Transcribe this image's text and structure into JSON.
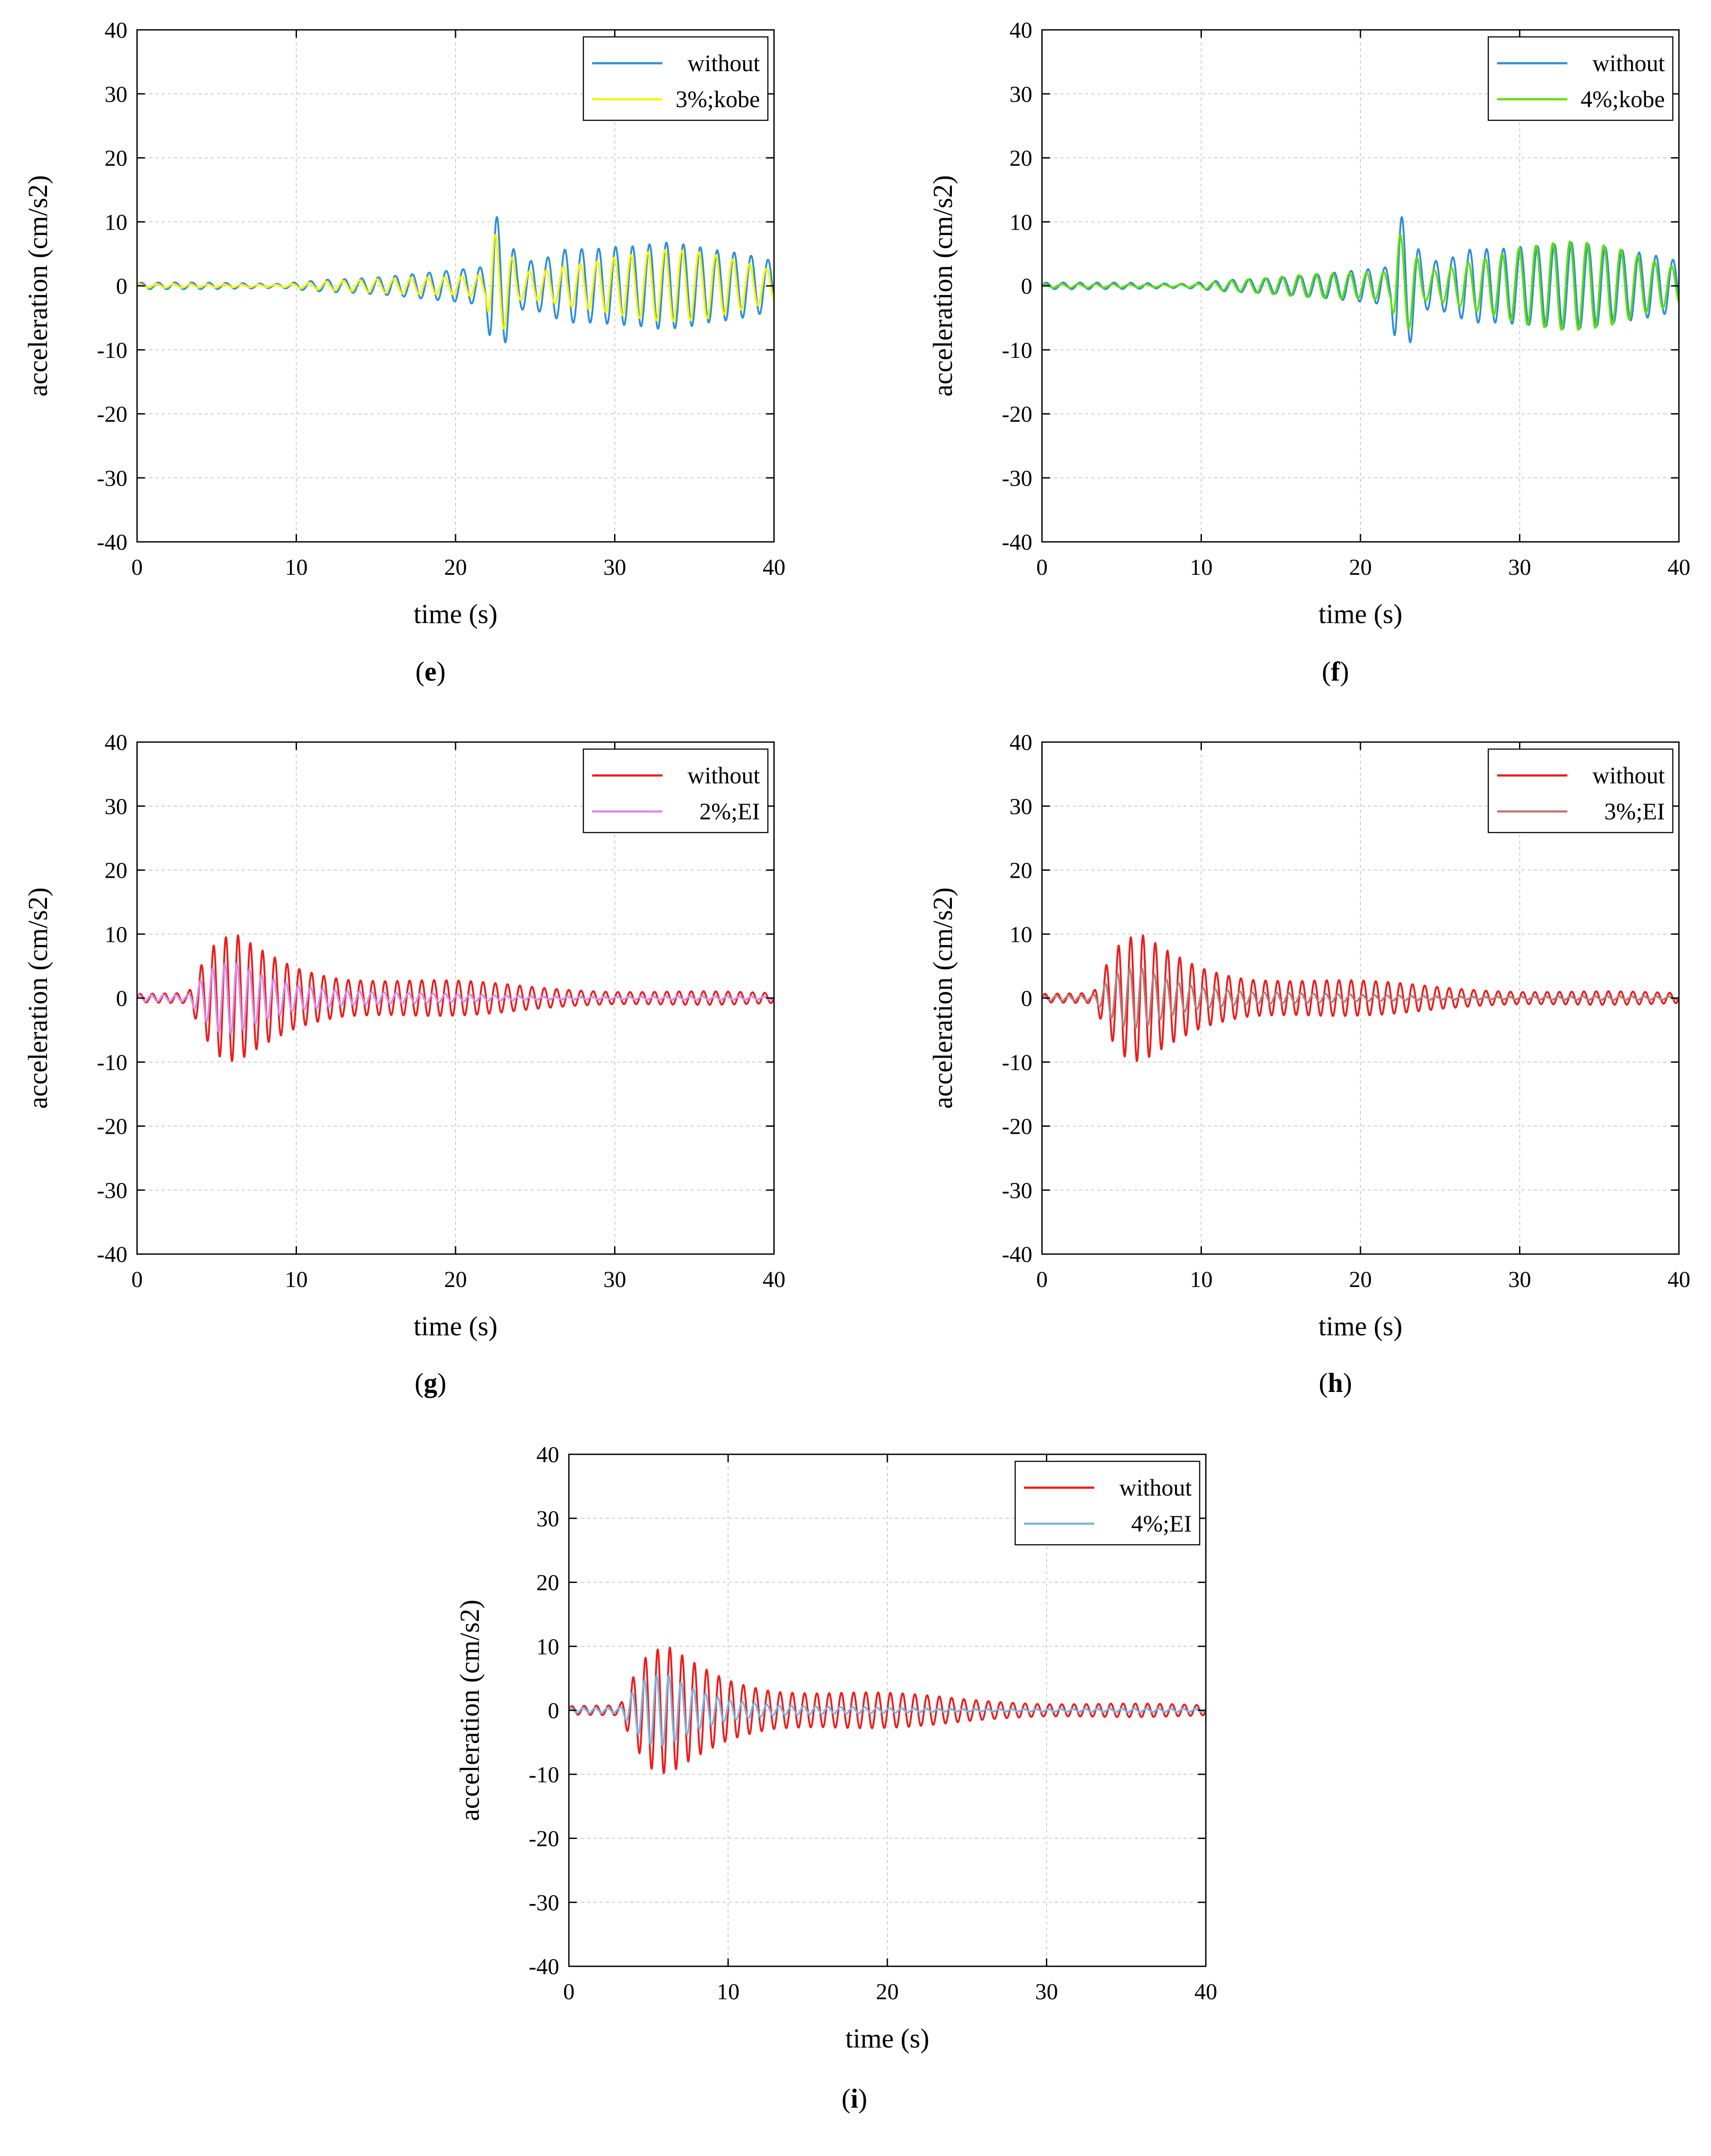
{
  "figure": {
    "panels": [
      "e",
      "f",
      "g",
      "h",
      "i"
    ]
  },
  "chart_data": [
    {
      "id": "e",
      "panel_label": "e",
      "type": "line",
      "xlabel": "time (s)",
      "ylabel": "acceleration (cm/s2)",
      "xlim": [
        0,
        40
      ],
      "ylim": [
        -40,
        40
      ],
      "xticks": [
        0,
        10,
        20,
        30,
        40
      ],
      "yticks": [
        -40,
        -30,
        -20,
        -10,
        0,
        10,
        20,
        30,
        40
      ],
      "grid": true,
      "legend_position": "top-right",
      "series": [
        {
          "name": "without",
          "color": "#2e8fd6",
          "record": "kobe",
          "role": "base",
          "envelope": [
            [
              0,
              0.6
            ],
            [
              9,
              0.4
            ],
            [
              12,
              1.5
            ],
            [
              16,
              2
            ],
            [
              20,
              2.5
            ],
            [
              21.9,
              3
            ],
            [
              22.3,
              12
            ],
            [
              23.2,
              9
            ],
            [
              24,
              4
            ],
            [
              25.5,
              5
            ],
            [
              27,
              8
            ],
            [
              30,
              9.5
            ],
            [
              33,
              9
            ],
            [
              36,
              6
            ],
            [
              38,
              5
            ],
            [
              40,
              4
            ]
          ]
        },
        {
          "name": "3%;kobe",
          "color": "#f5f500",
          "record": "kobe",
          "role": "damped",
          "envelope": [
            [
              0,
              0.3
            ],
            [
              9,
              0.3
            ],
            [
              12,
              1
            ],
            [
              16,
              1.2
            ],
            [
              20,
              1.4
            ],
            [
              21.9,
              2
            ],
            [
              22.3,
              10
            ],
            [
              23.2,
              8
            ],
            [
              24,
              3
            ],
            [
              25.5,
              3.5
            ],
            [
              27,
              5
            ],
            [
              30,
              6
            ],
            [
              33,
              6
            ],
            [
              36,
              5
            ],
            [
              38,
              4
            ],
            [
              40,
              3
            ]
          ]
        }
      ]
    },
    {
      "id": "f",
      "panel_label": "f",
      "type": "line",
      "xlabel": "time (s)",
      "ylabel": "acceleration (cm/s2)",
      "xlim": [
        0,
        40
      ],
      "ylim": [
        -40,
        40
      ],
      "xticks": [
        0,
        10,
        20,
        30,
        40
      ],
      "yticks": [
        -40,
        -30,
        -20,
        -10,
        0,
        10,
        20,
        30,
        40
      ],
      "grid": true,
      "legend_position": "top-right",
      "series": [
        {
          "name": "without",
          "color": "#2e8fd6",
          "record": "kobe",
          "role": "base",
          "envelope": [
            [
              0,
              0.6
            ],
            [
              9,
              0.4
            ],
            [
              12,
              1.5
            ],
            [
              16,
              2
            ],
            [
              20,
              2.5
            ],
            [
              21.9,
              3
            ],
            [
              22.3,
              12
            ],
            [
              23.2,
              9
            ],
            [
              24,
              4
            ],
            [
              25.5,
              5
            ],
            [
              27,
              8
            ],
            [
              30,
              9.5
            ],
            [
              33,
              9
            ],
            [
              36,
              6
            ],
            [
              38,
              5
            ],
            [
              40,
              4
            ]
          ]
        },
        {
          "name": "4%;kobe",
          "color": "#5fe000",
          "record": "kobe",
          "role": "damped",
          "envelope": [
            [
              0,
              0.3
            ],
            [
              9,
              0.3
            ],
            [
              12,
              1.2
            ],
            [
              16,
              1.8
            ],
            [
              20,
              2
            ],
            [
              21.9,
              2.5
            ],
            [
              22.3,
              10
            ],
            [
              23.2,
              8
            ],
            [
              24,
              3
            ],
            [
              25.5,
              4
            ],
            [
              27,
              6
            ],
            [
              30,
              8
            ],
            [
              33,
              7.5
            ],
            [
              36,
              6
            ],
            [
              38,
              4.5
            ],
            [
              40,
              3.5
            ]
          ]
        }
      ]
    },
    {
      "id": "g",
      "panel_label": "g",
      "type": "line",
      "xlabel": "time (s)",
      "ylabel": "acceleration (cm/s2)",
      "xlim": [
        0,
        40
      ],
      "ylim": [
        -40,
        40
      ],
      "xticks": [
        0,
        10,
        20,
        30,
        40
      ],
      "yticks": [
        -40,
        -30,
        -20,
        -10,
        0,
        10,
        20,
        30,
        40
      ],
      "grid": true,
      "legend_position": "top-right",
      "series": [
        {
          "name": "without",
          "color": "#ee1c1c",
          "record": "EI",
          "role": "base",
          "envelope": [
            [
              0,
              0.8
            ],
            [
              3.2,
              0.8
            ],
            [
              4,
              5
            ],
            [
              5,
              9
            ],
            [
              6.2,
              10.5
            ],
            [
              8,
              8.5
            ],
            [
              10,
              6.5
            ],
            [
              13,
              4.5
            ],
            [
              16,
              3.5
            ],
            [
              20,
              2.8
            ],
            [
              25,
              2
            ],
            [
              30,
              1.5
            ],
            [
              35,
              1.2
            ],
            [
              40,
              0.8
            ]
          ]
        },
        {
          "name": "2%;EI",
          "color": "#d58ce6",
          "record": "EI",
          "role": "damped",
          "envelope": [
            [
              0,
              0.5
            ],
            [
              3.2,
              0.5
            ],
            [
              4,
              3
            ],
            [
              5,
              6
            ],
            [
              6.2,
              7
            ],
            [
              8,
              5
            ],
            [
              10,
              3
            ],
            [
              13,
              1.5
            ],
            [
              16,
              0.9
            ],
            [
              20,
              0.6
            ],
            [
              25,
              0.4
            ],
            [
              30,
              0.3
            ],
            [
              35,
              0.3
            ],
            [
              40,
              0.3
            ]
          ]
        }
      ]
    },
    {
      "id": "h",
      "panel_label": "h",
      "type": "line",
      "xlabel": "time (s)",
      "ylabel": "acceleration (cm/s2)",
      "xlim": [
        0,
        40
      ],
      "ylim": [
        -40,
        40
      ],
      "xticks": [
        0,
        10,
        20,
        30,
        40
      ],
      "yticks": [
        -40,
        -30,
        -20,
        -10,
        0,
        10,
        20,
        30,
        40
      ],
      "grid": true,
      "legend_position": "top-right",
      "series": [
        {
          "name": "without",
          "color": "#ee1c1c",
          "record": "EI",
          "role": "base",
          "envelope": [
            [
              0,
              0.8
            ],
            [
              3.2,
              0.8
            ],
            [
              4,
              5
            ],
            [
              5,
              9
            ],
            [
              6.2,
              10.5
            ],
            [
              8,
              8.5
            ],
            [
              10,
              6.5
            ],
            [
              13,
              4.5
            ],
            [
              16,
              3.5
            ],
            [
              20,
              2.8
            ],
            [
              25,
              2
            ],
            [
              30,
              1.5
            ],
            [
              35,
              1.2
            ],
            [
              40,
              0.8
            ]
          ]
        },
        {
          "name": "3%;EI",
          "color": "#b87a7a",
          "record": "EI",
          "role": "damped",
          "envelope": [
            [
              0,
              0.4
            ],
            [
              3.2,
              0.4
            ],
            [
              4,
              2.5
            ],
            [
              5,
              5
            ],
            [
              6.2,
              6
            ],
            [
              8,
              4
            ],
            [
              10,
              2.5
            ],
            [
              13,
              1.2
            ],
            [
              16,
              0.8
            ],
            [
              20,
              0.5
            ],
            [
              25,
              0.4
            ],
            [
              30,
              0.3
            ],
            [
              35,
              0.3
            ],
            [
              40,
              0.3
            ]
          ]
        }
      ]
    },
    {
      "id": "i",
      "panel_label": "i",
      "type": "line",
      "xlabel": "time (s)",
      "ylabel": "acceleration (cm/s2)",
      "xlim": [
        0,
        40
      ],
      "ylim": [
        -40,
        40
      ],
      "xticks": [
        0,
        10,
        20,
        30,
        40
      ],
      "yticks": [
        -40,
        -30,
        -20,
        -10,
        0,
        10,
        20,
        30,
        40
      ],
      "grid": true,
      "legend_position": "top-right",
      "series": [
        {
          "name": "without",
          "color": "#ee1c1c",
          "record": "EI",
          "role": "base",
          "envelope": [
            [
              0,
              0.8
            ],
            [
              3.2,
              0.8
            ],
            [
              4,
              5
            ],
            [
              5,
              9
            ],
            [
              6.2,
              10.5
            ],
            [
              8,
              8.5
            ],
            [
              10,
              6.5
            ],
            [
              13,
              4.5
            ],
            [
              16,
              3.5
            ],
            [
              20,
              2.8
            ],
            [
              25,
              2
            ],
            [
              30,
              1.5
            ],
            [
              35,
              1.2
            ],
            [
              40,
              0.8
            ]
          ]
        },
        {
          "name": "4%;EI",
          "color": "#7fb2dd",
          "record": "EI",
          "role": "damped",
          "envelope": [
            [
              0,
              0.4
            ],
            [
              3.2,
              0.4
            ],
            [
              4,
              3
            ],
            [
              5,
              6
            ],
            [
              6.2,
              7
            ],
            [
              8,
              4.5
            ],
            [
              10,
              2.5
            ],
            [
              13,
              1
            ],
            [
              16,
              0.6
            ],
            [
              20,
              0.4
            ],
            [
              25,
              0.3
            ],
            [
              30,
              0.3
            ],
            [
              35,
              0.3
            ],
            [
              40,
              0.3
            ]
          ]
        }
      ]
    }
  ]
}
